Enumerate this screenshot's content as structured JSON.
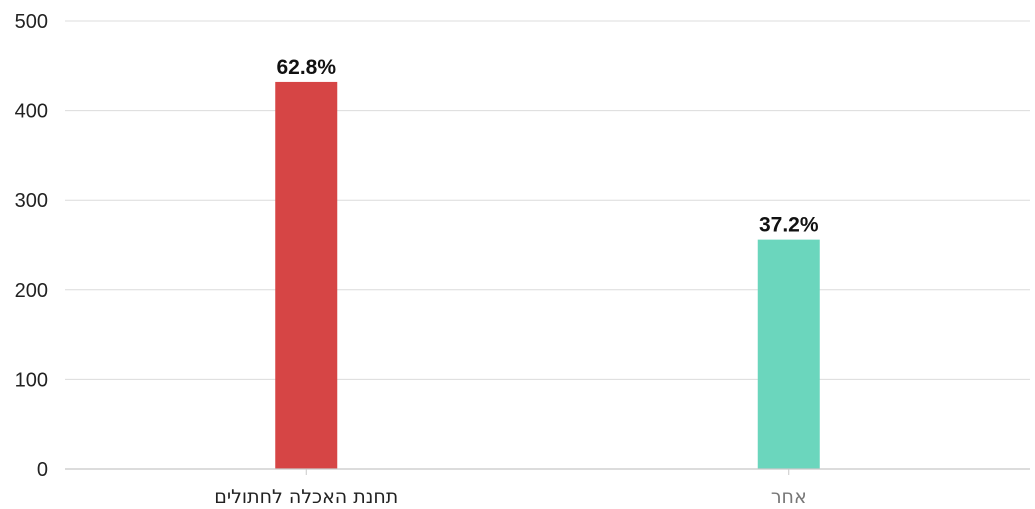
{
  "chart_data": {
    "type": "bar",
    "categories": [
      "תחנת האכלה לחתולים",
      "אחר"
    ],
    "values": [
      432,
      256
    ],
    "data_labels": [
      "62.8%",
      "37.2%"
    ],
    "colors": [
      "#d64545",
      "#6bd6bd"
    ],
    "category_label_colors": [
      "#222222",
      "#777777"
    ],
    "ylim": [
      0,
      500
    ],
    "y_ticks": [
      0,
      100,
      200,
      300,
      400,
      500
    ],
    "grid": true,
    "legend": "none",
    "title": "",
    "xlabel": "",
    "ylabel": ""
  }
}
